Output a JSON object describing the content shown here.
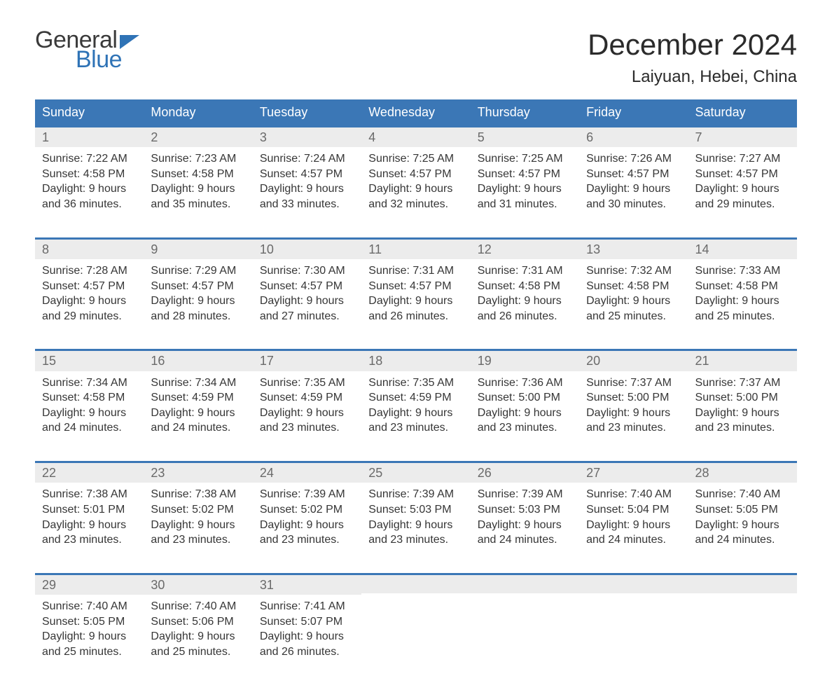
{
  "brand": {
    "word1": "General",
    "word2": "Blue",
    "accent_color": "#2f73b6"
  },
  "title": "December 2024",
  "location": "Laiyuan, Hebei, China",
  "colors": {
    "header_bg": "#3b77b6",
    "header_text": "#ffffff",
    "daynum_bg": "#ececec",
    "daynum_text": "#6a6a6a",
    "body_text": "#363636",
    "week_border": "#3b77b6",
    "page_bg": "#ffffff"
  },
  "type": "calendar-table",
  "day_headers": [
    "Sunday",
    "Monday",
    "Tuesday",
    "Wednesday",
    "Thursday",
    "Friday",
    "Saturday"
  ],
  "weeks": [
    [
      {
        "n": "1",
        "sunrise": "Sunrise: 7:22 AM",
        "sunset": "Sunset: 4:58 PM",
        "dl1": "Daylight: 9 hours",
        "dl2": "and 36 minutes."
      },
      {
        "n": "2",
        "sunrise": "Sunrise: 7:23 AM",
        "sunset": "Sunset: 4:58 PM",
        "dl1": "Daylight: 9 hours",
        "dl2": "and 35 minutes."
      },
      {
        "n": "3",
        "sunrise": "Sunrise: 7:24 AM",
        "sunset": "Sunset: 4:57 PM",
        "dl1": "Daylight: 9 hours",
        "dl2": "and 33 minutes."
      },
      {
        "n": "4",
        "sunrise": "Sunrise: 7:25 AM",
        "sunset": "Sunset: 4:57 PM",
        "dl1": "Daylight: 9 hours",
        "dl2": "and 32 minutes."
      },
      {
        "n": "5",
        "sunrise": "Sunrise: 7:25 AM",
        "sunset": "Sunset: 4:57 PM",
        "dl1": "Daylight: 9 hours",
        "dl2": "and 31 minutes."
      },
      {
        "n": "6",
        "sunrise": "Sunrise: 7:26 AM",
        "sunset": "Sunset: 4:57 PM",
        "dl1": "Daylight: 9 hours",
        "dl2": "and 30 minutes."
      },
      {
        "n": "7",
        "sunrise": "Sunrise: 7:27 AM",
        "sunset": "Sunset: 4:57 PM",
        "dl1": "Daylight: 9 hours",
        "dl2": "and 29 minutes."
      }
    ],
    [
      {
        "n": "8",
        "sunrise": "Sunrise: 7:28 AM",
        "sunset": "Sunset: 4:57 PM",
        "dl1": "Daylight: 9 hours",
        "dl2": "and 29 minutes."
      },
      {
        "n": "9",
        "sunrise": "Sunrise: 7:29 AM",
        "sunset": "Sunset: 4:57 PM",
        "dl1": "Daylight: 9 hours",
        "dl2": "and 28 minutes."
      },
      {
        "n": "10",
        "sunrise": "Sunrise: 7:30 AM",
        "sunset": "Sunset: 4:57 PM",
        "dl1": "Daylight: 9 hours",
        "dl2": "and 27 minutes."
      },
      {
        "n": "11",
        "sunrise": "Sunrise: 7:31 AM",
        "sunset": "Sunset: 4:57 PM",
        "dl1": "Daylight: 9 hours",
        "dl2": "and 26 minutes."
      },
      {
        "n": "12",
        "sunrise": "Sunrise: 7:31 AM",
        "sunset": "Sunset: 4:58 PM",
        "dl1": "Daylight: 9 hours",
        "dl2": "and 26 minutes."
      },
      {
        "n": "13",
        "sunrise": "Sunrise: 7:32 AM",
        "sunset": "Sunset: 4:58 PM",
        "dl1": "Daylight: 9 hours",
        "dl2": "and 25 minutes."
      },
      {
        "n": "14",
        "sunrise": "Sunrise: 7:33 AM",
        "sunset": "Sunset: 4:58 PM",
        "dl1": "Daylight: 9 hours",
        "dl2": "and 25 minutes."
      }
    ],
    [
      {
        "n": "15",
        "sunrise": "Sunrise: 7:34 AM",
        "sunset": "Sunset: 4:58 PM",
        "dl1": "Daylight: 9 hours",
        "dl2": "and 24 minutes."
      },
      {
        "n": "16",
        "sunrise": "Sunrise: 7:34 AM",
        "sunset": "Sunset: 4:59 PM",
        "dl1": "Daylight: 9 hours",
        "dl2": "and 24 minutes."
      },
      {
        "n": "17",
        "sunrise": "Sunrise: 7:35 AM",
        "sunset": "Sunset: 4:59 PM",
        "dl1": "Daylight: 9 hours",
        "dl2": "and 23 minutes."
      },
      {
        "n": "18",
        "sunrise": "Sunrise: 7:35 AM",
        "sunset": "Sunset: 4:59 PM",
        "dl1": "Daylight: 9 hours",
        "dl2": "and 23 minutes."
      },
      {
        "n": "19",
        "sunrise": "Sunrise: 7:36 AM",
        "sunset": "Sunset: 5:00 PM",
        "dl1": "Daylight: 9 hours",
        "dl2": "and 23 minutes."
      },
      {
        "n": "20",
        "sunrise": "Sunrise: 7:37 AM",
        "sunset": "Sunset: 5:00 PM",
        "dl1": "Daylight: 9 hours",
        "dl2": "and 23 minutes."
      },
      {
        "n": "21",
        "sunrise": "Sunrise: 7:37 AM",
        "sunset": "Sunset: 5:00 PM",
        "dl1": "Daylight: 9 hours",
        "dl2": "and 23 minutes."
      }
    ],
    [
      {
        "n": "22",
        "sunrise": "Sunrise: 7:38 AM",
        "sunset": "Sunset: 5:01 PM",
        "dl1": "Daylight: 9 hours",
        "dl2": "and 23 minutes."
      },
      {
        "n": "23",
        "sunrise": "Sunrise: 7:38 AM",
        "sunset": "Sunset: 5:02 PM",
        "dl1": "Daylight: 9 hours",
        "dl2": "and 23 minutes."
      },
      {
        "n": "24",
        "sunrise": "Sunrise: 7:39 AM",
        "sunset": "Sunset: 5:02 PM",
        "dl1": "Daylight: 9 hours",
        "dl2": "and 23 minutes."
      },
      {
        "n": "25",
        "sunrise": "Sunrise: 7:39 AM",
        "sunset": "Sunset: 5:03 PM",
        "dl1": "Daylight: 9 hours",
        "dl2": "and 23 minutes."
      },
      {
        "n": "26",
        "sunrise": "Sunrise: 7:39 AM",
        "sunset": "Sunset: 5:03 PM",
        "dl1": "Daylight: 9 hours",
        "dl2": "and 24 minutes."
      },
      {
        "n": "27",
        "sunrise": "Sunrise: 7:40 AM",
        "sunset": "Sunset: 5:04 PM",
        "dl1": "Daylight: 9 hours",
        "dl2": "and 24 minutes."
      },
      {
        "n": "28",
        "sunrise": "Sunrise: 7:40 AM",
        "sunset": "Sunset: 5:05 PM",
        "dl1": "Daylight: 9 hours",
        "dl2": "and 24 minutes."
      }
    ],
    [
      {
        "n": "29",
        "sunrise": "Sunrise: 7:40 AM",
        "sunset": "Sunset: 5:05 PM",
        "dl1": "Daylight: 9 hours",
        "dl2": "and 25 minutes."
      },
      {
        "n": "30",
        "sunrise": "Sunrise: 7:40 AM",
        "sunset": "Sunset: 5:06 PM",
        "dl1": "Daylight: 9 hours",
        "dl2": "and 25 minutes."
      },
      {
        "n": "31",
        "sunrise": "Sunrise: 7:41 AM",
        "sunset": "Sunset: 5:07 PM",
        "dl1": "Daylight: 9 hours",
        "dl2": "and 26 minutes."
      },
      {
        "empty": true
      },
      {
        "empty": true
      },
      {
        "empty": true
      },
      {
        "empty": true
      }
    ]
  ]
}
